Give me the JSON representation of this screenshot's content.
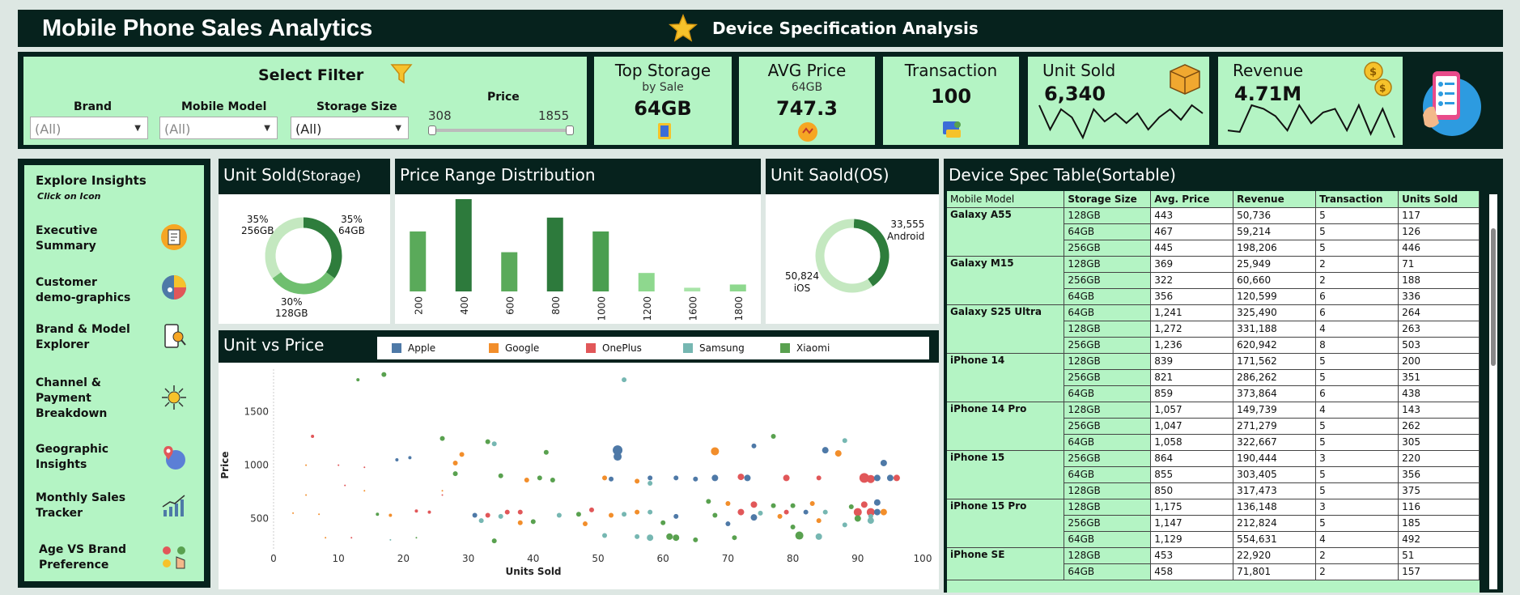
{
  "header": {
    "title": "Mobile Phone Sales Analytics",
    "subtitle": "Device Specification Analysis",
    "star_icon": "star-icon"
  },
  "filter": {
    "title": "Select Filter",
    "brand_label": "Brand",
    "brand_value": "(All)",
    "model_label": "Mobile Model",
    "model_value": "(All)",
    "storage_label": "Storage Size",
    "storage_value": "(All)",
    "price_label": "Price",
    "price_min": "308",
    "price_max": "1855"
  },
  "kpis": {
    "top_storage": {
      "label": "Top Storage",
      "sub": "by Sale",
      "value": "64GB"
    },
    "avg_price": {
      "label": "AVG Price",
      "sub": "64GB",
      "value": "747.3"
    },
    "transaction": {
      "label": "Transaction",
      "value": "100"
    },
    "unit_sold": {
      "label": "Unit Sold",
      "value": "6,340",
      "spark": [
        60,
        30,
        55,
        45,
        20,
        55,
        40,
        50,
        38,
        50,
        30,
        45,
        55,
        42,
        60,
        50
      ]
    },
    "revenue": {
      "label": "Revenue",
      "value": "4.71M",
      "spark": [
        20,
        18,
        55,
        50,
        40,
        20,
        55,
        30,
        45,
        50,
        20,
        55,
        15,
        50,
        10
      ]
    }
  },
  "nav": {
    "title": "Explore Insights",
    "hint": "Click on Icon",
    "items": [
      "Executive Summary",
      "Customer demo-graphics",
      "Brand & Model Explorer",
      "Channel & Payment Breakdown",
      "Geographic Insights",
      "Monthly Sales Tracker",
      "Age VS Brand Preference"
    ]
  },
  "storage_chart": {
    "title": "Unit Sold",
    "title_suffix": "(Storage)",
    "slices": [
      {
        "label": "35%",
        "sub": "64GB",
        "value": 35,
        "color": "#2e7d3c"
      },
      {
        "label": "30%",
        "sub": "128GB",
        "value": 30,
        "color": "#6fbf6f"
      },
      {
        "label": "35%",
        "sub": "256GB",
        "value": 35,
        "color": "#c4e8c0"
      }
    ]
  },
  "chart_data": [
    {
      "type": "bar",
      "title": "Price Range Distribution",
      "categories": [
        "200",
        "400",
        "600",
        "800",
        "1000",
        "1200",
        "1600",
        "1800"
      ],
      "values": [
        13,
        20,
        8.5,
        16,
        13,
        4,
        0.8,
        1.5
      ],
      "colors": [
        "#5aaa5a",
        "#2d7a3c",
        "#5aaa5a",
        "#2d7a3c",
        "#4a9e4f",
        "#8ed88e",
        "#a8e4a8",
        "#8ed88e"
      ]
    },
    {
      "type": "pie",
      "title": "Unit Saold(OS)",
      "slices": [
        {
          "label": "33,555",
          "sub": "Android",
          "value": 33555,
          "color": "#2e7d3c"
        },
        {
          "label": "50,824",
          "sub": "iOS",
          "value": 50824,
          "color": "#c4e8c0"
        }
      ]
    },
    {
      "type": "scatter",
      "title": "Unit vs Price",
      "xlabel": "Units Sold",
      "ylabel": "Price",
      "xlim": [
        0,
        100
      ],
      "ylim": [
        200,
        1900
      ],
      "xticks": [
        0,
        10,
        20,
        30,
        40,
        50,
        60,
        70,
        80,
        90,
        100
      ],
      "yticks": [
        500,
        1000,
        1500
      ],
      "legend": [
        {
          "name": "Apple",
          "color": "#4e79a7"
        },
        {
          "name": "Google",
          "color": "#f28e2b"
        },
        {
          "name": "OnePlus",
          "color": "#e15759"
        },
        {
          "name": "Samsung",
          "color": "#76b7b2"
        },
        {
          "name": "Xiaomi",
          "color": "#59a14f"
        }
      ],
      "points": [
        [
          17,
          1850,
          4,
          3,
          2
        ],
        [
          13,
          1800,
          4,
          2,
          2
        ],
        [
          54,
          1800,
          3,
          3,
          2
        ],
        [
          26,
          1250,
          4,
          3,
          2
        ],
        [
          6,
          1270,
          2,
          2,
          2
        ],
        [
          33,
          1220,
          4,
          3,
          2
        ],
        [
          34,
          1200,
          3,
          3,
          2
        ],
        [
          77,
          1270,
          4,
          3,
          2
        ],
        [
          88,
          1230,
          3,
          3,
          2
        ],
        [
          74,
          1180,
          0,
          3,
          2
        ],
        [
          53,
          1140,
          0,
          6,
          5
        ],
        [
          68,
          1130,
          1,
          5,
          3
        ],
        [
          85,
          1140,
          0,
          4,
          3
        ],
        [
          87,
          1110,
          1,
          4,
          3
        ],
        [
          29,
          1100,
          1,
          3,
          2
        ],
        [
          42,
          1120,
          4,
          3,
          2
        ],
        [
          28,
          1020,
          1,
          3,
          2
        ],
        [
          19,
          1050,
          0,
          2,
          2
        ],
        [
          21,
          1070,
          0,
          2,
          2
        ],
        [
          53,
          1080,
          0,
          5,
          5
        ],
        [
          94,
          1020,
          0,
          4,
          3
        ],
        [
          10,
          1000,
          2,
          1,
          2
        ],
        [
          5,
          1000,
          1,
          1,
          2
        ],
        [
          14,
          980,
          2,
          1,
          2
        ],
        [
          28,
          920,
          4,
          3,
          2
        ],
        [
          35,
          900,
          4,
          3,
          2
        ],
        [
          41,
          880,
          4,
          3,
          2
        ],
        [
          43,
          860,
          4,
          3,
          2
        ],
        [
          39,
          860,
          1,
          3,
          2
        ],
        [
          51,
          880,
          1,
          3,
          2
        ],
        [
          52,
          870,
          0,
          3,
          2
        ],
        [
          58,
          880,
          0,
          3,
          2
        ],
        [
          62,
          880,
          0,
          3,
          2
        ],
        [
          65,
          870,
          0,
          3,
          2
        ],
        [
          68,
          880,
          0,
          4,
          3
        ],
        [
          73,
          880,
          0,
          4,
          3
        ],
        [
          72,
          890,
          2,
          4,
          3
        ],
        [
          79,
          880,
          2,
          4,
          3
        ],
        [
          84,
          880,
          2,
          3,
          2
        ],
        [
          91,
          880,
          2,
          6,
          4
        ],
        [
          92,
          870,
          2,
          5,
          4
        ],
        [
          93,
          880,
          0,
          4,
          3
        ],
        [
          95,
          880,
          0,
          4,
          3
        ],
        [
          96,
          880,
          2,
          4,
          3
        ],
        [
          56,
          850,
          1,
          3,
          2
        ],
        [
          58,
          830,
          3,
          3,
          2
        ],
        [
          11,
          810,
          2,
          1,
          2
        ],
        [
          5,
          720,
          1,
          1,
          2
        ],
        [
          14,
          760,
          1,
          1,
          2
        ],
        [
          26,
          760,
          1,
          1,
          2
        ],
        [
          26,
          720,
          2,
          1,
          2
        ],
        [
          67,
          660,
          4,
          3,
          2
        ],
        [
          70,
          640,
          1,
          3,
          2
        ],
        [
          74,
          630,
          2,
          4,
          3
        ],
        [
          77,
          620,
          4,
          3,
          2
        ],
        [
          80,
          620,
          4,
          3,
          2
        ],
        [
          83,
          640,
          1,
          3,
          2
        ],
        [
          93,
          650,
          0,
          4,
          3
        ],
        [
          91,
          630,
          2,
          4,
          3
        ],
        [
          89,
          610,
          4,
          3,
          2
        ],
        [
          22,
          570,
          2,
          2,
          2
        ],
        [
          24,
          560,
          2,
          2,
          2
        ],
        [
          36,
          560,
          2,
          3,
          2
        ],
        [
          38,
          560,
          2,
          3,
          2
        ],
        [
          49,
          580,
          2,
          3,
          2
        ],
        [
          56,
          560,
          1,
          3,
          2
        ],
        [
          58,
          560,
          3,
          3,
          2
        ],
        [
          72,
          560,
          2,
          4,
          3
        ],
        [
          75,
          550,
          3,
          3,
          2
        ],
        [
          79,
          560,
          2,
          3,
          2
        ],
        [
          82,
          560,
          0,
          3,
          2
        ],
        [
          85,
          560,
          3,
          3,
          2
        ],
        [
          90,
          560,
          2,
          5,
          4
        ],
        [
          92,
          560,
          2,
          5,
          4
        ],
        [
          93,
          560,
          0,
          4,
          3
        ],
        [
          94,
          560,
          1,
          4,
          3
        ],
        [
          92,
          520,
          3,
          3,
          2
        ],
        [
          16,
          540,
          4,
          2,
          2
        ],
        [
          18,
          530,
          1,
          2,
          2
        ],
        [
          31,
          530,
          0,
          3,
          2
        ],
        [
          33,
          530,
          2,
          3,
          2
        ],
        [
          35,
          520,
          3,
          3,
          2
        ],
        [
          44,
          530,
          3,
          3,
          2
        ],
        [
          47,
          540,
          4,
          3,
          2
        ],
        [
          52,
          530,
          1,
          3,
          2
        ],
        [
          54,
          540,
          3,
          3,
          2
        ],
        [
          62,
          520,
          0,
          3,
          2
        ],
        [
          68,
          530,
          4,
          3,
          2
        ],
        [
          74,
          510,
          0,
          4,
          3
        ],
        [
          78,
          520,
          1,
          3,
          2
        ],
        [
          84,
          480,
          1,
          3,
          2
        ],
        [
          90,
          500,
          4,
          4,
          3
        ],
        [
          92,
          480,
          3,
          4,
          3
        ],
        [
          3,
          550,
          1,
          1,
          2
        ],
        [
          7,
          540,
          1,
          1,
          2
        ],
        [
          32,
          480,
          3,
          3,
          2
        ],
        [
          38,
          460,
          1,
          3,
          2
        ],
        [
          40,
          470,
          4,
          3,
          2
        ],
        [
          48,
          450,
          1,
          3,
          2
        ],
        [
          60,
          460,
          4,
          3,
          2
        ],
        [
          70,
          450,
          0,
          3,
          2
        ],
        [
          80,
          420,
          4,
          3,
          2
        ],
        [
          88,
          440,
          3,
          3,
          2
        ],
        [
          8,
          320,
          1,
          1,
          2
        ],
        [
          12,
          320,
          2,
          1,
          2
        ],
        [
          18,
          300,
          3,
          1,
          2
        ],
        [
          22,
          320,
          4,
          1,
          2
        ],
        [
          34,
          290,
          4,
          3,
          2
        ],
        [
          51,
          340,
          3,
          3,
          2
        ],
        [
          56,
          330,
          3,
          3,
          2
        ],
        [
          58,
          320,
          3,
          4,
          3
        ],
        [
          61,
          330,
          4,
          4,
          3
        ],
        [
          62,
          320,
          4,
          4,
          3
        ],
        [
          65,
          300,
          4,
          3,
          2
        ],
        [
          71,
          320,
          4,
          3,
          2
        ],
        [
          81,
          340,
          4,
          5,
          4
        ],
        [
          84,
          330,
          3,
          4,
          3
        ]
      ]
    },
    {
      "type": "table",
      "title": "Device Spec Table(Sortable)",
      "columns": [
        "Mobile Model",
        "Storage Size",
        "Avg. Price",
        "Revenue",
        "Transaction",
        "Units Sold"
      ],
      "groups": [
        {
          "model": "Galaxy A55",
          "rows": [
            [
              "128GB",
              "443",
              "50,736",
              "5",
              "117"
            ],
            [
              "64GB",
              "467",
              "59,214",
              "5",
              "126"
            ],
            [
              "256GB",
              "445",
              "198,206",
              "5",
              "446"
            ]
          ]
        },
        {
          "model": "Galaxy M15",
          "rows": [
            [
              "128GB",
              "369",
              "25,949",
              "2",
              "71"
            ],
            [
              "256GB",
              "322",
              "60,660",
              "2",
              "188"
            ],
            [
              "64GB",
              "356",
              "120,599",
              "6",
              "336"
            ]
          ]
        },
        {
          "model": "Galaxy S25 Ultra",
          "rows": [
            [
              "64GB",
              "1,241",
              "325,490",
              "6",
              "264"
            ],
            [
              "128GB",
              "1,272",
              "331,188",
              "4",
              "263"
            ],
            [
              "256GB",
              "1,236",
              "620,942",
              "8",
              "503"
            ]
          ]
        },
        {
          "model": "iPhone 14",
          "rows": [
            [
              "128GB",
              "839",
              "171,562",
              "5",
              "200"
            ],
            [
              "256GB",
              "821",
              "286,262",
              "5",
              "351"
            ],
            [
              "64GB",
              "859",
              "373,864",
              "6",
              "438"
            ]
          ]
        },
        {
          "model": "iPhone 14 Pro",
          "rows": [
            [
              "128GB",
              "1,057",
              "149,739",
              "4",
              "143"
            ],
            [
              "256GB",
              "1,047",
              "271,279",
              "5",
              "262"
            ],
            [
              "64GB",
              "1,058",
              "322,667",
              "5",
              "305"
            ]
          ]
        },
        {
          "model": "iPhone 15",
          "rows": [
            [
              "256GB",
              "864",
              "190,444",
              "3",
              "220"
            ],
            [
              "64GB",
              "855",
              "303,405",
              "5",
              "356"
            ],
            [
              "128GB",
              "850",
              "317,473",
              "5",
              "375"
            ]
          ]
        },
        {
          "model": "iPhone 15 Pro",
          "rows": [
            [
              "128GB",
              "1,175",
              "136,148",
              "3",
              "116"
            ],
            [
              "256GB",
              "1,147",
              "212,824",
              "5",
              "185"
            ],
            [
              "64GB",
              "1,129",
              "554,631",
              "4",
              "492"
            ]
          ]
        },
        {
          "model": "iPhone SE",
          "rows": [
            [
              "128GB",
              "453",
              "22,920",
              "2",
              "51"
            ],
            [
              "64GB",
              "458",
              "71,801",
              "2",
              "157"
            ]
          ]
        }
      ]
    }
  ]
}
